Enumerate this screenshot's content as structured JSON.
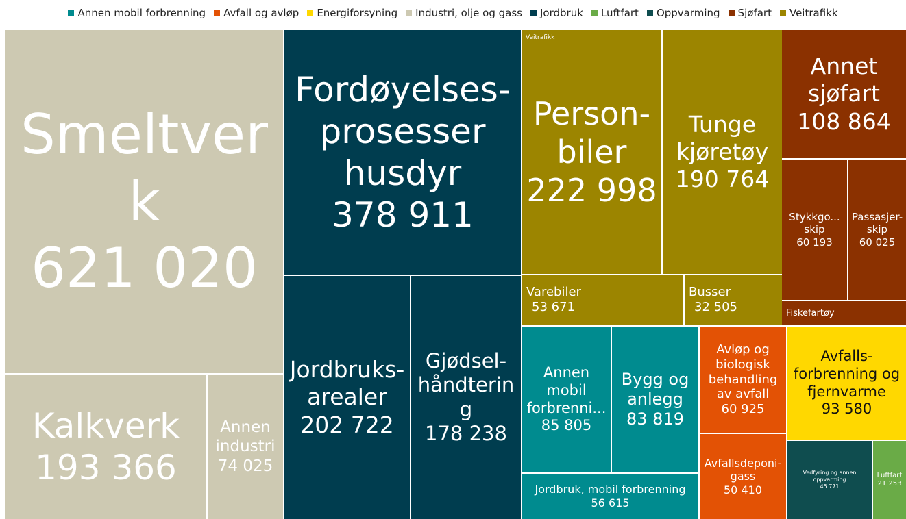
{
  "chart_data": {
    "type": "treemap",
    "legend": {
      "position": "top"
    },
    "series": [
      {
        "name": "Annen mobil forbrenning",
        "color": "#008b8f",
        "labels": [
          "Annen mobil forbrenni...",
          "Bygg og anlegg",
          "Jordbruk, mobil forbrenning"
        ],
        "values": [
          85805,
          83819,
          56615
        ],
        "value_labels": [
          "85 805",
          "83 819",
          "56 615"
        ]
      },
      {
        "name": "Avfall og avløp",
        "color": "#e35205",
        "labels": [
          "Avløp og biologisk behandling av avfall",
          "Avfallsdeponi-gass"
        ],
        "values": [
          60925,
          50410
        ],
        "value_labels": [
          "60 925",
          "50 410"
        ]
      },
      {
        "name": "Energiforsyning",
        "color": "#ffd800",
        "labels": [
          "Avfalls-forbrenning og fjernvarme"
        ],
        "values": [
          93580
        ],
        "value_labels": [
          "93 580"
        ]
      },
      {
        "name": "Industri, olje og gass",
        "color": "#cdc9b2",
        "labels": [
          "Smeltverk",
          "Kalkverk",
          "Annen industri"
        ],
        "values": [
          621020,
          193366,
          74025
        ],
        "value_labels": [
          "621 020",
          "193 366",
          "74 025"
        ]
      },
      {
        "name": "Jordbruk",
        "color": "#003d4f",
        "labels": [
          "Fordøyelses-prosesser husdyr",
          "Jordbruks-arealer",
          "Gjødsel-håndtering"
        ],
        "values": [
          378911,
          202722,
          178238
        ],
        "value_labels": [
          "378 911",
          "202 722",
          "178 238"
        ]
      },
      {
        "name": "Luftfart",
        "color": "#6aab47",
        "labels": [
          "Luftfart"
        ],
        "values": [
          21253
        ],
        "value_labels": [
          "21 253"
        ]
      },
      {
        "name": "Oppvarming",
        "color": "#0f4d4f",
        "labels": [
          "Vedfyring og annen oppvarming"
        ],
        "values": [
          45771
        ],
        "value_labels": [
          "45 771"
        ]
      },
      {
        "name": "Sjøfart",
        "color": "#8b3100",
        "labels": [
          "Annet sjøfart",
          "Stykkgo... skip",
          "Passasjer-skip",
          "Fiskefartøy"
        ],
        "values": [
          108864,
          60193,
          60025,
          19400
        ],
        "value_labels": [
          "108 864",
          "60 193",
          "60 025",
          null
        ]
      },
      {
        "name": "Veitrafikk",
        "color": "#9c8500",
        "labels": [
          "Person-biler",
          "Tunge kjøretøy",
          "Varebiler",
          "Busser"
        ],
        "values": [
          222998,
          190764,
          53671,
          32505
        ],
        "value_labels": [
          "222 998",
          "190 764",
          "53 671",
          "32 505"
        ]
      }
    ]
  }
}
